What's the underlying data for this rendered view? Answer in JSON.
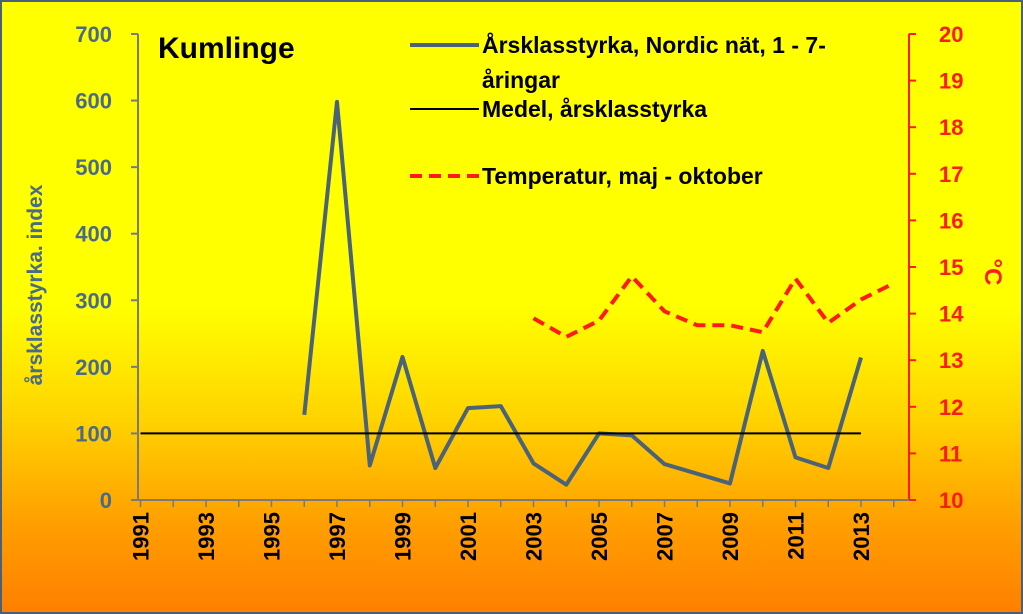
{
  "chart_data": {
    "type": "line",
    "title": "Kumlinge",
    "ylabel": "årsklasstyrka. index",
    "y2label": "°C",
    "x_ticks": [
      "1991",
      "1993",
      "1995",
      "1997",
      "1999",
      "2001",
      "2003",
      "2005",
      "2007",
      "2009",
      "2011",
      "2013"
    ],
    "xlim": [
      1991,
      2014
    ],
    "ylim": [
      0,
      700
    ],
    "y_ticks": [
      0,
      100,
      200,
      300,
      400,
      500,
      600,
      700
    ],
    "y2lim": [
      10,
      20
    ],
    "y2_ticks": [
      10,
      11,
      12,
      13,
      14,
      15,
      16,
      17,
      18,
      19,
      20
    ],
    "grid": false,
    "legend_position": "top",
    "series": [
      {
        "name": "Årsklasstyrka, Nordic nät, 1 - 7-åringar",
        "axis": "left",
        "color": "#4a6379",
        "style": "solid",
        "x": [
          1996,
          1997,
          1998,
          1999,
          2000,
          2001,
          2002,
          2003,
          2004,
          2005,
          2006,
          2007,
          2009,
          2010,
          2011,
          2012,
          2013
        ],
        "y": [
          128,
          598,
          52,
          215,
          48,
          138,
          141,
          55,
          23,
          100,
          97,
          54,
          25,
          224,
          64,
          48,
          214
        ]
      },
      {
        "name": "Medel, årsklasstyrka",
        "axis": "left",
        "color": "#000000",
        "style": "solid",
        "x": [
          1991,
          2013
        ],
        "y": [
          100,
          100
        ]
      },
      {
        "name": "Temperatur, maj - oktober",
        "axis": "right",
        "color": "#ff1a1a",
        "style": "dashed",
        "x": [
          2003,
          2004,
          2005,
          2006,
          2007,
          2008,
          2009,
          2010,
          2011,
          2012,
          2013,
          2014
        ],
        "y": [
          13.9,
          13.5,
          13.85,
          14.8,
          14.05,
          13.75,
          13.75,
          13.6,
          14.75,
          13.8,
          14.3,
          14.65
        ]
      }
    ]
  }
}
